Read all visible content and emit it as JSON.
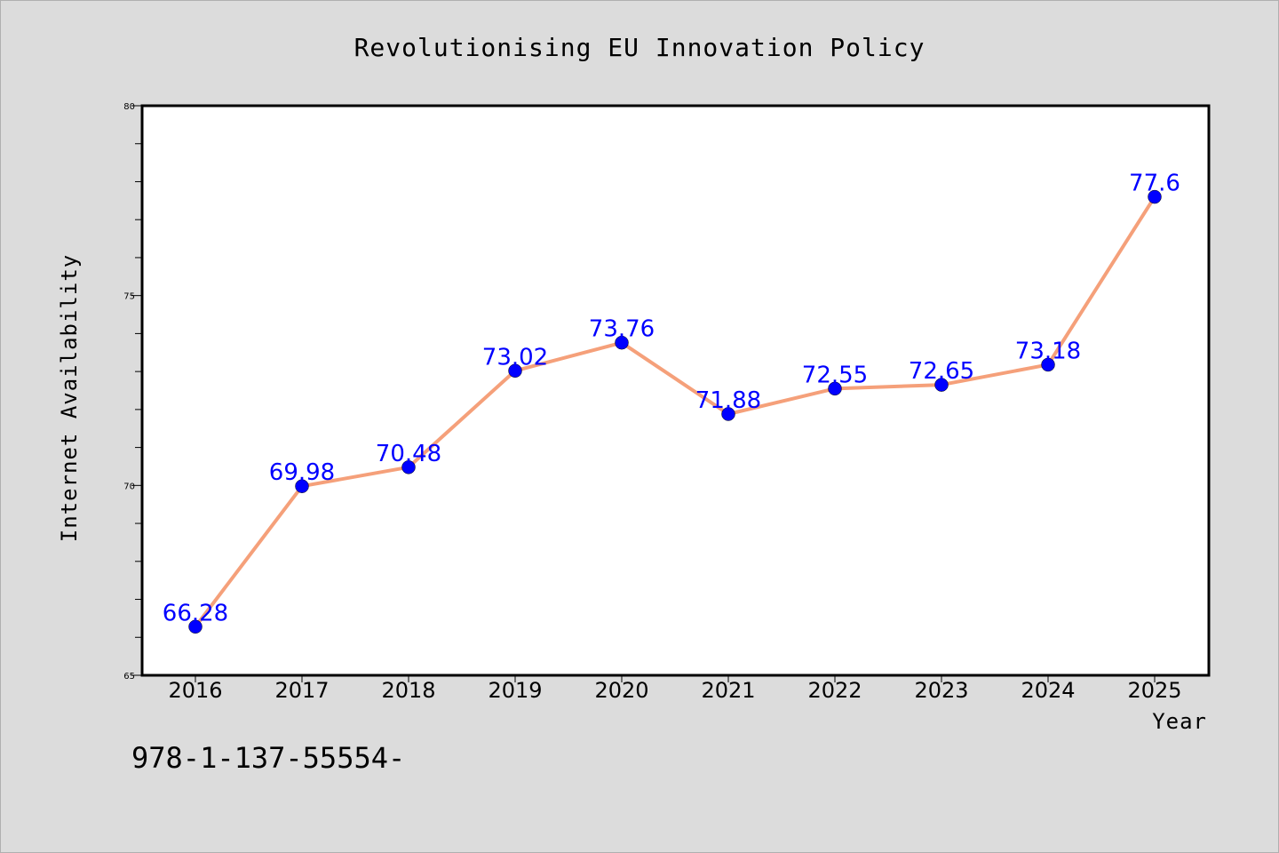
{
  "chart_data": {
    "type": "line",
    "title": "Revolutionising EU Innovation Policy",
    "xlabel": "Year",
    "ylabel": "Internet Availability",
    "categories": [
      "2016",
      "2017",
      "2018",
      "2019",
      "2020",
      "2021",
      "2022",
      "2023",
      "2024",
      "2025"
    ],
    "series": [
      {
        "values": [
          66.28,
          69.98,
          70.48,
          73.02,
          73.76,
          71.88,
          72.55,
          72.65,
          73.18,
          77.6
        ],
        "line_color": "#f5a07a",
        "marker_color": "#0000ff"
      }
    ],
    "data_labels": [
      "66.28",
      "69.98",
      "70.48",
      "73.02",
      "73.76",
      "71.88",
      "72.55",
      "72.65",
      "73.18",
      "77.6"
    ],
    "ylim": [
      65,
      80
    ],
    "yticks": [
      65,
      70,
      75,
      80
    ],
    "ytick_labels": [
      "65",
      "70",
      "75",
      "80"
    ],
    "grid": false,
    "legend": "none"
  },
  "footnote": "978-1-137-55554-"
}
